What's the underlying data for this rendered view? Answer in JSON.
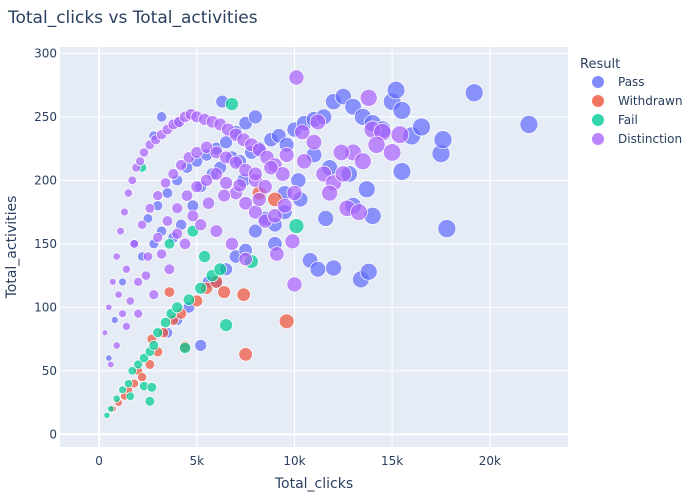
{
  "chart_data": {
    "type": "scatter",
    "title": "Total_clicks vs Total_activities",
    "xlabel": "Total_clicks",
    "ylabel": "Total_activities",
    "xlim": [
      -2000,
      24000
    ],
    "ylim": [
      -10,
      305
    ],
    "xticks": [
      0,
      5000,
      10000,
      15000,
      20000
    ],
    "xtick_labels": [
      "0",
      "5k",
      "10k",
      "15k",
      "20k"
    ],
    "yticks": [
      0,
      50,
      100,
      150,
      200,
      250,
      300
    ],
    "ytick_labels": [
      "0",
      "50",
      "100",
      "150",
      "200",
      "250",
      "300"
    ],
    "grid": true,
    "background": "#e5ecf6",
    "legend": {
      "title": "Result",
      "position": "right"
    },
    "series": [
      {
        "name": "Pass",
        "color": "#636efa",
        "points": [
          [
            500,
            60
          ],
          [
            800,
            90
          ],
          [
            1200,
            120
          ],
          [
            1800,
            150
          ],
          [
            2500,
            170
          ],
          [
            3000,
            180
          ],
          [
            3500,
            190
          ],
          [
            4000,
            200
          ],
          [
            4500,
            210
          ],
          [
            5000,
            215
          ],
          [
            5500,
            220
          ],
          [
            6000,
            225
          ],
          [
            6500,
            230
          ],
          [
            7000,
            238
          ],
          [
            7500,
            245
          ],
          [
            8000,
            250
          ],
          [
            2200,
            140
          ],
          [
            2800,
            150
          ],
          [
            3200,
            160
          ],
          [
            3800,
            155
          ],
          [
            4200,
            165
          ],
          [
            4800,
            180
          ],
          [
            5200,
            195
          ],
          [
            5800,
            205
          ],
          [
            6200,
            210
          ],
          [
            6800,
            218
          ],
          [
            7200,
            215
          ],
          [
            7800,
            222
          ],
          [
            8200,
            225
          ],
          [
            8800,
            232
          ],
          [
            9200,
            235
          ],
          [
            9600,
            228
          ],
          [
            10000,
            240
          ],
          [
            10500,
            245
          ],
          [
            11000,
            248
          ],
          [
            11500,
            250
          ],
          [
            12000,
            262
          ],
          [
            12500,
            266
          ],
          [
            13000,
            258
          ],
          [
            13500,
            250
          ],
          [
            14000,
            245
          ],
          [
            14500,
            240
          ],
          [
            15000,
            262
          ],
          [
            15200,
            271
          ],
          [
            15500,
            255
          ],
          [
            16000,
            235
          ],
          [
            16500,
            242
          ],
          [
            17500,
            221
          ],
          [
            17600,
            232
          ],
          [
            17800,
            162
          ],
          [
            19200,
            269
          ],
          [
            22000,
            244
          ],
          [
            13400,
            122
          ],
          [
            13800,
            128
          ],
          [
            14000,
            172
          ],
          [
            15500,
            207
          ],
          [
            12000,
            131
          ],
          [
            10800,
            137
          ],
          [
            11200,
            130
          ],
          [
            11600,
            170
          ],
          [
            12800,
            205
          ],
          [
            13000,
            180
          ],
          [
            13700,
            193
          ],
          [
            9500,
            190
          ],
          [
            10200,
            200
          ],
          [
            6000,
            120
          ],
          [
            6500,
            130
          ],
          [
            7000,
            140
          ],
          [
            7500,
            145
          ],
          [
            4600,
            100
          ],
          [
            5200,
            70
          ],
          [
            5600,
            120
          ],
          [
            8000,
            160
          ],
          [
            8500,
            170
          ],
          [
            9000,
            165
          ],
          [
            3500,
            80
          ],
          [
            4000,
            90
          ],
          [
            9000,
            150
          ],
          [
            9500,
            175
          ],
          [
            10300,
            185
          ],
          [
            11000,
            220
          ],
          [
            11800,
            210
          ],
          [
            7400,
            200
          ],
          [
            6300,
            262
          ],
          [
            2800,
            235
          ],
          [
            3200,
            250
          ],
          [
            4000,
            245
          ]
        ]
      },
      {
        "name": "Withdrawn",
        "color": "#ef553b",
        "points": [
          [
            700,
            20
          ],
          [
            1000,
            25
          ],
          [
            1300,
            30
          ],
          [
            1500,
            35
          ],
          [
            1800,
            40
          ],
          [
            2000,
            50
          ],
          [
            2200,
            45
          ],
          [
            2600,
            55
          ],
          [
            3000,
            65
          ],
          [
            3300,
            80
          ],
          [
            3800,
            90
          ],
          [
            4200,
            95
          ],
          [
            4400,
            69
          ],
          [
            5000,
            105
          ],
          [
            5500,
            115
          ],
          [
            6000,
            120
          ],
          [
            6400,
            112
          ],
          [
            7400,
            110
          ],
          [
            7500,
            63
          ],
          [
            9600,
            89
          ],
          [
            8200,
            190
          ],
          [
            9000,
            185
          ],
          [
            3600,
            112
          ],
          [
            2700,
            75
          ]
        ]
      },
      {
        "name": "Fail",
        "color": "#00cc96",
        "points": [
          [
            400,
            15
          ],
          [
            600,
            20
          ],
          [
            900,
            28
          ],
          [
            1200,
            35
          ],
          [
            1500,
            40
          ],
          [
            1700,
            50
          ],
          [
            2000,
            55
          ],
          [
            2300,
            60
          ],
          [
            2600,
            65
          ],
          [
            2800,
            70
          ],
          [
            3000,
            80
          ],
          [
            3400,
            88
          ],
          [
            3700,
            95
          ],
          [
            4000,
            100
          ],
          [
            4400,
            68
          ],
          [
            4600,
            106
          ],
          [
            5200,
            115
          ],
          [
            5800,
            125
          ],
          [
            6200,
            130
          ],
          [
            6500,
            86
          ],
          [
            7800,
            136
          ],
          [
            10100,
            164
          ],
          [
            2300,
            38
          ],
          [
            2700,
            37
          ],
          [
            2600,
            26
          ],
          [
            6800,
            260
          ],
          [
            3600,
            150
          ],
          [
            4800,
            160
          ],
          [
            5400,
            140
          ],
          [
            2200,
            210
          ],
          [
            1600,
            30
          ]
        ]
      },
      {
        "name": "Distinction",
        "color": "#ab63fa",
        "points": [
          [
            300,
            80
          ],
          [
            500,
            100
          ],
          [
            700,
            120
          ],
          [
            900,
            140
          ],
          [
            1100,
            160
          ],
          [
            1300,
            175
          ],
          [
            1500,
            190
          ],
          [
            1700,
            200
          ],
          [
            1900,
            210
          ],
          [
            2100,
            215
          ],
          [
            2300,
            222
          ],
          [
            2600,
            228
          ],
          [
            2900,
            232
          ],
          [
            3200,
            236
          ],
          [
            3500,
            240
          ],
          [
            3800,
            244
          ],
          [
            4100,
            246
          ],
          [
            4400,
            250
          ],
          [
            4700,
            252
          ],
          [
            5000,
            250
          ],
          [
            5400,
            248
          ],
          [
            5800,
            246
          ],
          [
            6200,
            244
          ],
          [
            6600,
            240
          ],
          [
            7000,
            236
          ],
          [
            7400,
            232
          ],
          [
            7800,
            228
          ],
          [
            8200,
            224
          ],
          [
            8600,
            218
          ],
          [
            9000,
            212
          ],
          [
            9400,
            205
          ],
          [
            1000,
            110
          ],
          [
            1400,
            130
          ],
          [
            1800,
            150
          ],
          [
            2200,
            165
          ],
          [
            2600,
            178
          ],
          [
            3000,
            188
          ],
          [
            3400,
            198
          ],
          [
            3800,
            205
          ],
          [
            4200,
            212
          ],
          [
            4600,
            218
          ],
          [
            5000,
            222
          ],
          [
            5500,
            226
          ],
          [
            6000,
            222
          ],
          [
            6500,
            218
          ],
          [
            7000,
            214
          ],
          [
            7500,
            208
          ],
          [
            8000,
            200
          ],
          [
            8500,
            195
          ],
          [
            2000,
            120
          ],
          [
            2500,
            140
          ],
          [
            3000,
            155
          ],
          [
            3500,
            168
          ],
          [
            4000,
            178
          ],
          [
            4500,
            188
          ],
          [
            5000,
            195
          ],
          [
            5500,
            200
          ],
          [
            6000,
            205
          ],
          [
            6500,
            198
          ],
          [
            7000,
            190
          ],
          [
            7500,
            182
          ],
          [
            8000,
            175
          ],
          [
            8500,
            168
          ],
          [
            9000,
            172
          ],
          [
            9500,
            180
          ],
          [
            10000,
            190
          ],
          [
            10500,
            215
          ],
          [
            11000,
            230
          ],
          [
            11500,
            205
          ],
          [
            12000,
            198
          ],
          [
            12500,
            205
          ],
          [
            13000,
            222
          ],
          [
            13500,
            215
          ],
          [
            14000,
            240
          ],
          [
            14500,
            238
          ],
          [
            15000,
            222
          ],
          [
            15400,
            236
          ],
          [
            10100,
            281
          ],
          [
            10400,
            238
          ],
          [
            9900,
            152
          ],
          [
            9100,
            142
          ],
          [
            10000,
            118
          ],
          [
            8200,
            185
          ],
          [
            7500,
            138
          ],
          [
            6800,
            150
          ],
          [
            6000,
            160
          ],
          [
            5200,
            165
          ],
          [
            4400,
            150
          ],
          [
            3600,
            130
          ],
          [
            2800,
            110
          ],
          [
            2000,
            95
          ],
          [
            1400,
            85
          ],
          [
            900,
            70
          ],
          [
            600,
            55
          ],
          [
            1200,
            95
          ],
          [
            1600,
            105
          ],
          [
            2400,
            125
          ],
          [
            3200,
            142
          ],
          [
            4000,
            158
          ],
          [
            4800,
            172
          ],
          [
            5600,
            182
          ],
          [
            6400,
            188
          ],
          [
            7200,
            196
          ],
          [
            8000,
            205
          ],
          [
            8800,
            210
          ],
          [
            9600,
            220
          ],
          [
            11200,
            246
          ],
          [
            12400,
            222
          ],
          [
            13800,
            265
          ],
          [
            14200,
            228
          ],
          [
            11800,
            190
          ],
          [
            12700,
            178
          ],
          [
            13300,
            175
          ]
        ]
      }
    ]
  }
}
